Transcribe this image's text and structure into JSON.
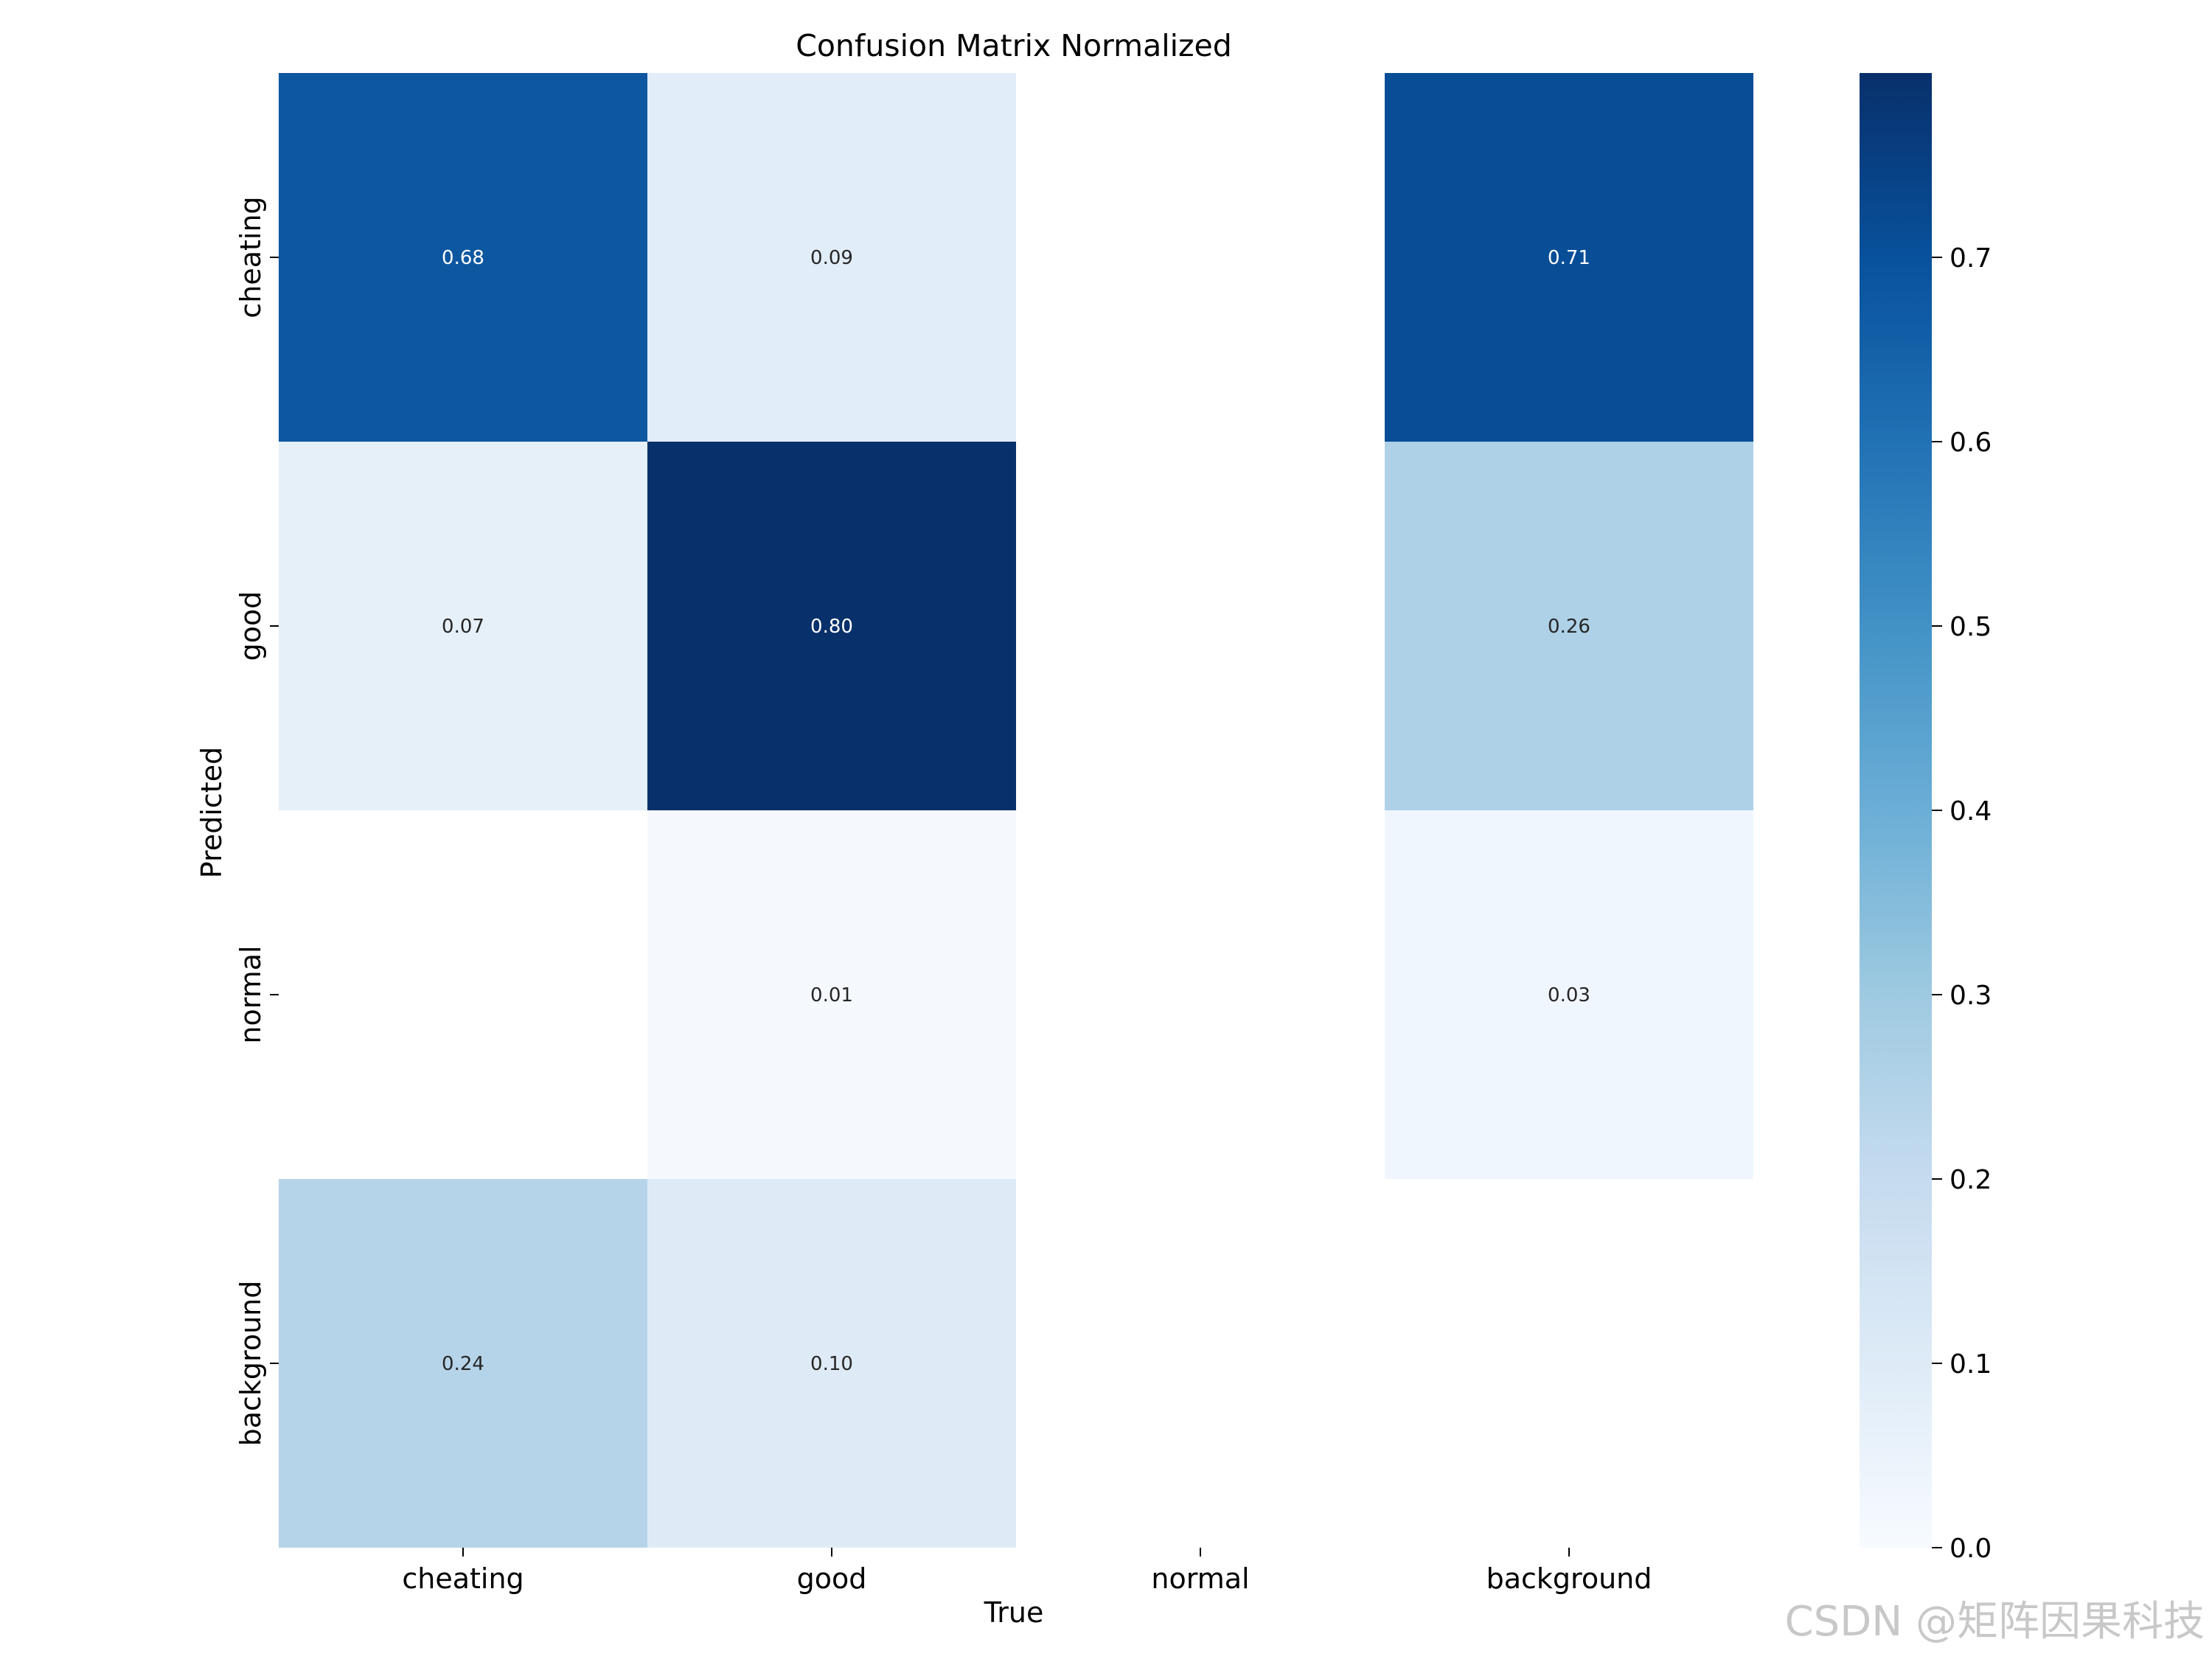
{
  "chart_data": {
    "type": "heatmap",
    "title": "Confusion Matrix Normalized",
    "xlabel": "True",
    "ylabel": "Predicted",
    "x_categories": [
      "cheating",
      "good",
      "normal",
      "background"
    ],
    "y_categories": [
      "cheating",
      "good",
      "normal",
      "background"
    ],
    "values": [
      [
        0.68,
        0.09,
        null,
        0.71
      ],
      [
        0.07,
        0.8,
        null,
        0.26
      ],
      [
        null,
        0.01,
        null,
        0.03
      ],
      [
        0.24,
        0.1,
        null,
        null
      ]
    ],
    "value_format": "2dp",
    "colormap": "Blues",
    "colorbar": {
      "min": 0.0,
      "max": 0.8,
      "ticks": [
        0.0,
        0.1,
        0.2,
        0.3,
        0.4,
        0.5,
        0.6,
        0.7
      ]
    },
    "grid": false,
    "legend": "colorbar-right"
  },
  "watermark": "CSDN @矩阵因果科技"
}
